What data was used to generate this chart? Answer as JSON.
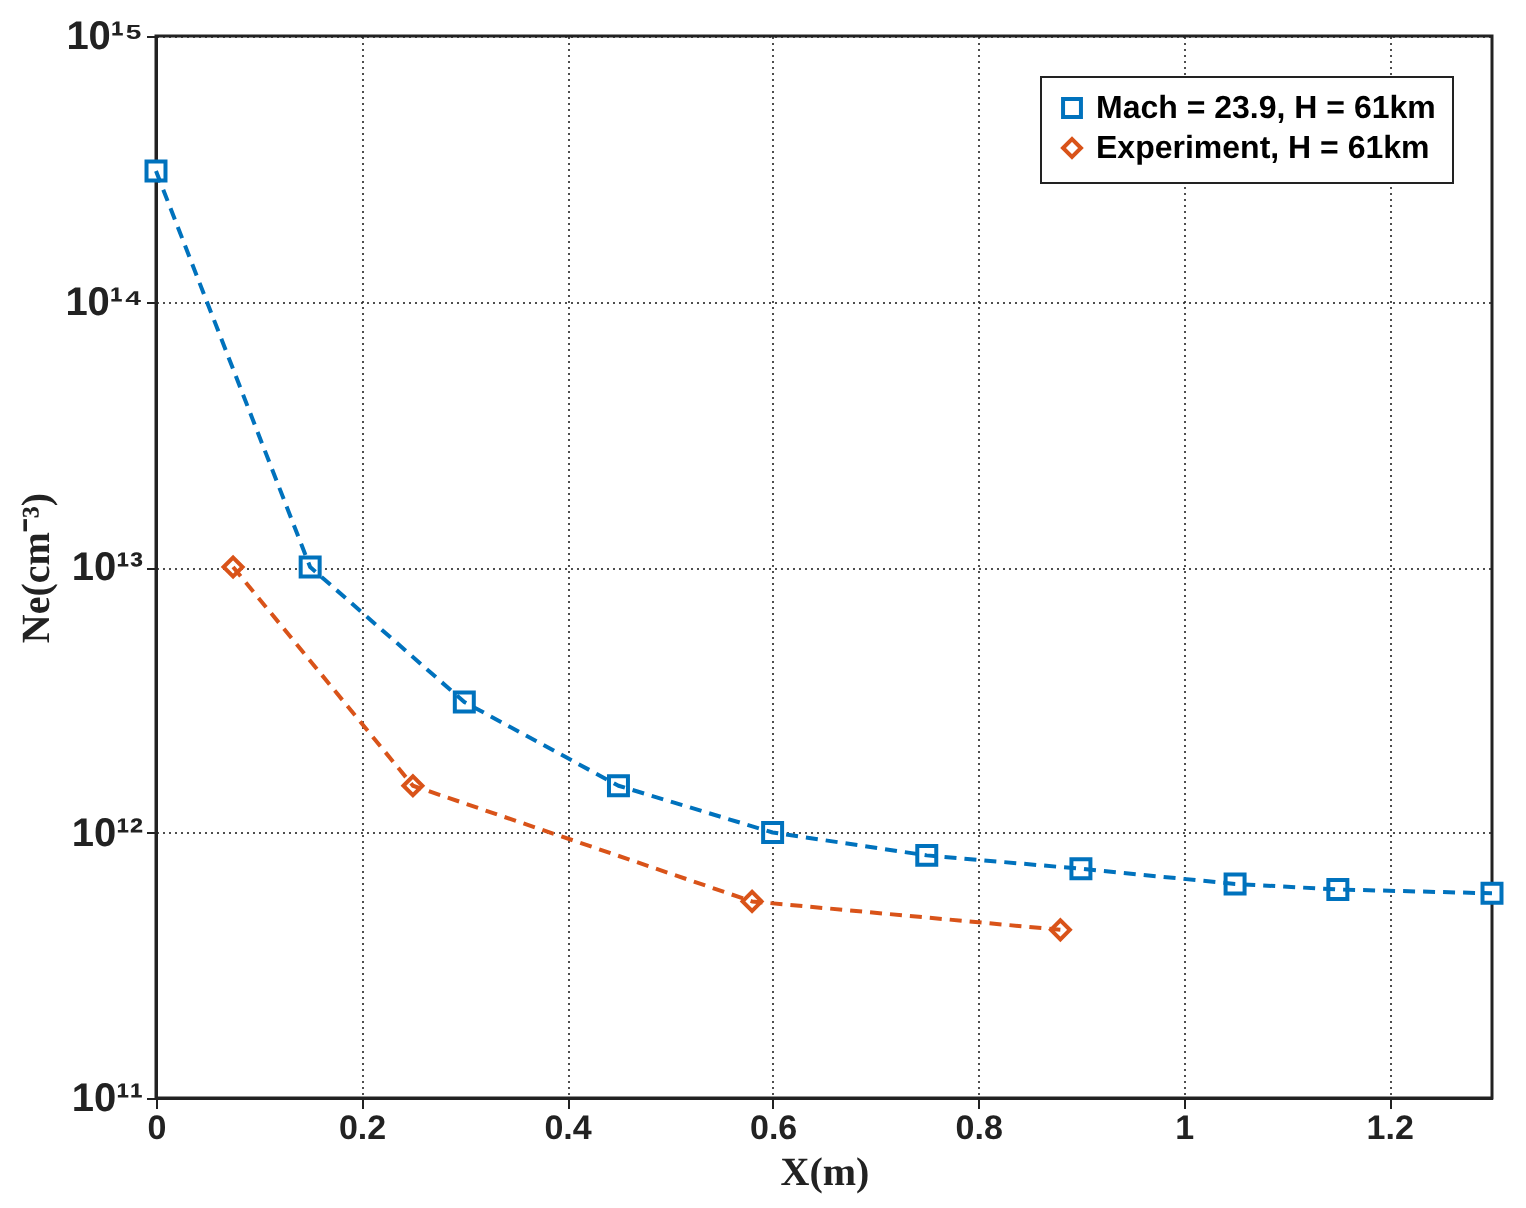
{
  "chart_data": {
    "type": "line",
    "xlabel": "X(m)",
    "ylabel": "Ne(cm⁻³)",
    "series": [
      {
        "name": "Mach = 23.9, H = 61km",
        "color": "#0072bd",
        "marker": "square",
        "line_style": "dashed",
        "x": [
          0,
          0.15,
          0.3,
          0.45,
          0.6,
          0.75,
          0.9,
          1.05,
          1.15,
          1.3
        ],
        "values": [
          310000000000000.0,
          10000000000000.0,
          3100000000000.0,
          1500000000000.0,
          1000000000000.0,
          820000000000.0,
          730000000000.0,
          640000000000.0,
          610000000000.0,
          590000000000.0
        ]
      },
      {
        "name": "Experiment, H = 61km",
        "color": "#d95319",
        "marker": "diamond",
        "line_style": "dashed",
        "x": [
          0.075,
          0.25,
          0.58,
          0.88
        ],
        "values": [
          10000000000000.0,
          1500000000000.0,
          550000000000.0,
          430000000000.0
        ]
      }
    ],
    "log": "y",
    "xlim": [
      0,
      1.3
    ],
    "xticks": [
      0,
      0.2,
      0.4,
      0.6,
      0.8,
      1,
      1.2
    ],
    "ylim": [
      100000000000.0,
      1000000000000000.0
    ],
    "yticks": [
      {
        "value": 100000000000.0,
        "label": "10¹¹"
      },
      {
        "value": 1000000000000.0,
        "label": "10¹²"
      },
      {
        "value": 10000000000000.0,
        "label": "10¹³"
      },
      {
        "value": 100000000000000.0,
        "label": "10¹⁴"
      },
      {
        "value": 1000000000000000.0,
        "label": "10¹⁵"
      }
    ],
    "grid": true,
    "legend": "top right"
  }
}
